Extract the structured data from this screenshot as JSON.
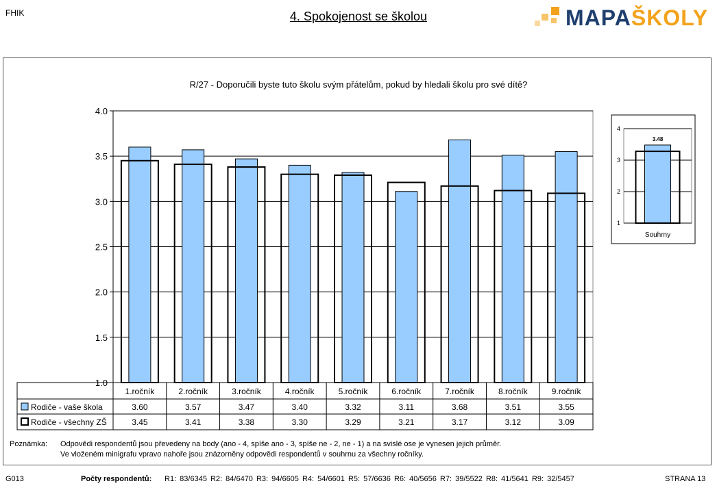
{
  "header": {
    "school_code": "FHIK",
    "title": "4. Spokojenost se školou",
    "logo_part1": "MAPA",
    "logo_part2": "ŠKOLY"
  },
  "chart_data": [
    {
      "type": "bar",
      "title": "R/27 - Doporučili byste tuto školu svým přátelům, pokud by hledali školu pro své dítě?",
      "categories": [
        "1.ročník",
        "2.ročník",
        "3.ročník",
        "4.ročník",
        "5.ročník",
        "6.ročník",
        "7.ročník",
        "8.ročník",
        "9.ročník"
      ],
      "series": [
        {
          "name": "Rodiče - vaše škola",
          "values": [
            3.6,
            3.57,
            3.47,
            3.4,
            3.32,
            3.11,
            3.68,
            3.51,
            3.55
          ],
          "color": "#99ccff"
        },
        {
          "name": "Rodiče - všechny ZŠ",
          "values": [
            3.45,
            3.41,
            3.38,
            3.3,
            3.29,
            3.21,
            3.17,
            3.12,
            3.09
          ],
          "color": "#ffffff"
        }
      ],
      "ylim": [
        1.0,
        4.0
      ],
      "yticks": [
        "1.0",
        "1.5",
        "2.0",
        "2.5",
        "3.0",
        "3.5",
        "4.0"
      ],
      "grid": true,
      "legend": "table-below"
    },
    {
      "type": "bar",
      "categories": [
        "Souhrny"
      ],
      "series": [
        {
          "name": "Rodiče - vaše škola",
          "values": [
            3.48
          ],
          "color": "#99ccff"
        },
        {
          "name": "Rodiče - všechny ZŠ",
          "values": [
            3.28
          ],
          "color": "#ffffff"
        }
      ],
      "data_label": "3.48",
      "ylim": [
        1,
        4
      ],
      "yticks": [
        "1",
        "2",
        "3",
        "4"
      ]
    }
  ],
  "note": {
    "label": "Poznámka:",
    "line1": "Odpovědi respondentů jsou převedeny na body (ano - 4, spíše ano - 3, spíše ne - 2, ne - 1) a na svislé ose je vynesen jejich průměr.",
    "line2": "Ve vloženém minigrafu vpravo nahoře jsou znázorněny odpovědi respondentů v souhrnu za všechny ročníky."
  },
  "footer": {
    "code": "G013",
    "respondents_label": "Počty respondentů:",
    "respondents": "R1: 83/6345    R2: 84/6470    R3: 94/6605    R4: 54/6601    R5: 57/6636    R6: 40/5656    R7: 39/5522    R8: 41/5641    R9: 32/5457",
    "page": "STRANA 13"
  }
}
